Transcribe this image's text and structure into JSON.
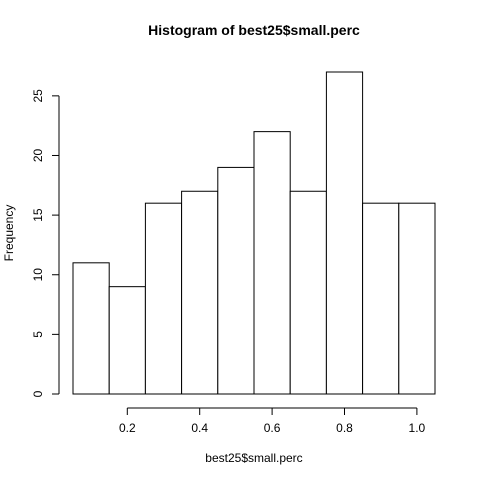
{
  "chart_data": {
    "type": "bar",
    "title": "Histogram of best25$small.perc",
    "xlabel": "best25$small.perc",
    "ylabel": "Frequency",
    "bin_edges": [
      0.05,
      0.15,
      0.25,
      0.35,
      0.45,
      0.55,
      0.65,
      0.75,
      0.85,
      0.95,
      1.05
    ],
    "values": [
      11,
      9,
      16,
      17,
      19,
      22,
      17,
      27,
      16,
      16
    ],
    "xlim": [
      0.05,
      1.05
    ],
    "ylim": [
      0,
      27
    ],
    "x_ticks": [
      0.2,
      0.4,
      0.6,
      0.8,
      1.0
    ],
    "x_tick_labels": [
      "0.2",
      "0.4",
      "0.6",
      "0.8",
      "1.0"
    ],
    "y_ticks": [
      0,
      5,
      10,
      15,
      20,
      25
    ],
    "y_tick_labels": [
      "0",
      "5",
      "10",
      "15",
      "20",
      "25"
    ],
    "grid": false,
    "colors": {
      "bar_fill": "#ffffff",
      "bar_stroke": "#000000"
    }
  }
}
